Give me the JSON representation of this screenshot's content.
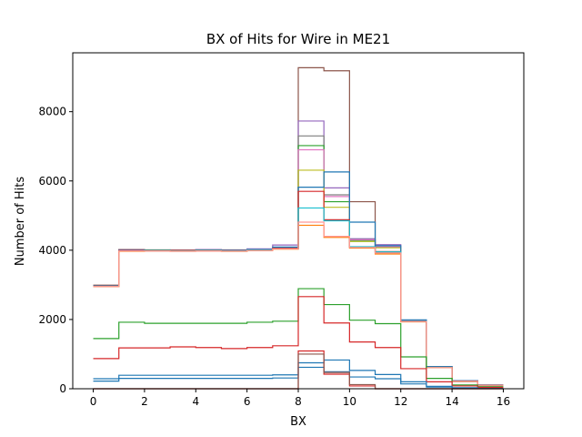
{
  "chart_data": {
    "type": "line",
    "style": "step histogram",
    "title": "BX of Hits for Wire in ME21",
    "xlabel": "BX",
    "ylabel": "Number of Hits",
    "xlim": [
      -0.8,
      16.8
    ],
    "ylim": [
      0,
      9700
    ],
    "xticks": [
      0,
      2,
      4,
      6,
      8,
      10,
      12,
      14,
      16
    ],
    "yticks": [
      0,
      2000,
      4000,
      6000,
      8000
    ],
    "grid": false,
    "legend": "none",
    "bin_edges": [
      0,
      1,
      2,
      3,
      4,
      5,
      6,
      7,
      8,
      9,
      10,
      11,
      12,
      13,
      14,
      15,
      16
    ],
    "series": [
      {
        "color": "#8c564b",
        "values": [
          2990,
          4020,
          4010,
          4000,
          4010,
          4010,
          4030,
          4050,
          9270,
          9180,
          5400,
          3960,
          1960,
          620,
          230,
          110
        ]
      },
      {
        "color": "#9467bd",
        "values": [
          2960,
          4010,
          4000,
          4010,
          4020,
          4000,
          4040,
          4150,
          7730,
          5800,
          4330,
          4160,
          1980,
          640,
          230,
          110
        ]
      },
      {
        "color": "#7f7f7f",
        "values": [
          2970,
          4000,
          3990,
          4000,
          3990,
          3990,
          4000,
          4050,
          7300,
          5600,
          4310,
          4120,
          1970,
          630,
          220,
          110
        ]
      },
      {
        "color": "#2ca02c",
        "values": [
          2950,
          3990,
          4000,
          3990,
          4000,
          3980,
          4010,
          4060,
          7020,
          5400,
          4280,
          4080,
          1950,
          610,
          210,
          100
        ]
      },
      {
        "color": "#e377c2",
        "values": [
          2960,
          3990,
          3990,
          3980,
          3980,
          3980,
          4010,
          4040,
          6900,
          5550,
          4300,
          4100,
          1960,
          630,
          220,
          110
        ]
      },
      {
        "color": "#bcbd22",
        "values": [
          2950,
          3980,
          3990,
          3990,
          3990,
          3970,
          3990,
          4050,
          6310,
          5240,
          4250,
          4070,
          1940,
          620,
          210,
          100
        ]
      },
      {
        "color": "#1f77b4",
        "values": [
          2980,
          4000,
          3980,
          3980,
          3990,
          3990,
          4020,
          4090,
          5820,
          6260,
          4810,
          4130,
          1990,
          640,
          230,
          110
        ]
      },
      {
        "color": "#d62728",
        "values": [
          2970,
          3990,
          3990,
          3990,
          3990,
          3980,
          4000,
          4060,
          5700,
          4880,
          4090,
          3930,
          1950,
          620,
          220,
          100
        ]
      },
      {
        "color": "#17becf",
        "values": [
          2960,
          3980,
          3990,
          3980,
          3990,
          3980,
          4010,
          4040,
          5220,
          4850,
          4100,
          3950,
          1950,
          620,
          210,
          100
        ]
      },
      {
        "color": "#ff7f0e",
        "values": [
          2950,
          3970,
          3980,
          3970,
          3980,
          3970,
          3990,
          4030,
          4720,
          4370,
          4060,
          3890,
          1930,
          610,
          210,
          100
        ]
      },
      {
        "color": "#ff9896",
        "values": [
          2950,
          3980,
          3980,
          3970,
          3980,
          3970,
          3990,
          4040,
          4810,
          4400,
          4080,
          3920,
          1940,
          610,
          210,
          100
        ]
      },
      {
        "color": "#2ca02c",
        "values": [
          1450,
          1920,
          1890,
          1890,
          1890,
          1890,
          1920,
          1950,
          2890,
          2430,
          1980,
          1880,
          920,
          300,
          110,
          60
        ]
      },
      {
        "color": "#d62728",
        "values": [
          870,
          1180,
          1180,
          1210,
          1190,
          1160,
          1190,
          1240,
          2660,
          1900,
          1350,
          1190,
          580,
          200,
          80,
          40
        ]
      },
      {
        "color": "#1f77b4",
        "values": [
          290,
          390,
          390,
          390,
          390,
          390,
          390,
          400,
          750,
          830,
          530,
          410,
          200,
          70,
          30,
          10
        ]
      },
      {
        "color": "#1f77b4",
        "values": [
          220,
          300,
          300,
          300,
          300,
          300,
          300,
          310,
          620,
          490,
          340,
          290,
          140,
          50,
          20,
          10
        ]
      },
      {
        "color": "#d62728",
        "values": [
          0,
          0,
          0,
          0,
          0,
          0,
          0,
          0,
          1090,
          420,
          80,
          0,
          0,
          0,
          0,
          0
        ]
      },
      {
        "color": "#8c564b",
        "values": [
          0,
          0,
          0,
          0,
          0,
          0,
          0,
          0,
          1000,
          470,
          120,
          0,
          0,
          0,
          0,
          0
        ]
      }
    ]
  }
}
